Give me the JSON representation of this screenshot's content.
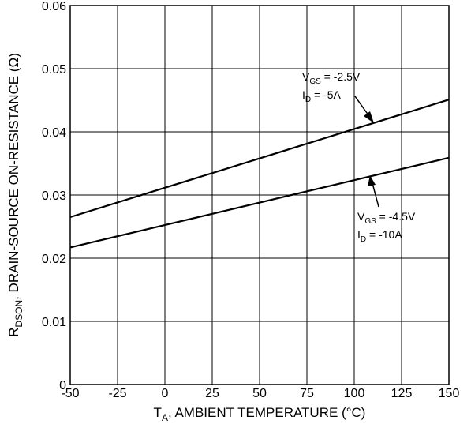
{
  "chart_data": {
    "type": "line",
    "x": [
      -50,
      150
    ],
    "series": [
      {
        "label_var": "GS",
        "label_prefix": "V",
        "label_value": " = -2.5V",
        "label2_var": "D",
        "label2_prefix": "I",
        "label2_value": " = -5A",
        "values": [
          0.0265,
          0.0451
        ]
      },
      {
        "label_var": "GS",
        "label_prefix": "V",
        "label_value": " = -4.5V",
        "label2_var": "D",
        "label2_prefix": "I",
        "label2_value": " = -10A",
        "values": [
          0.0217,
          0.0359
        ]
      }
    ],
    "xlim": [
      -50,
      150
    ],
    "ylim": [
      0,
      0.06
    ],
    "x_ticks": [
      "-50",
      "-25",
      "0",
      "25",
      "50",
      "75",
      "100",
      "125",
      "150"
    ],
    "y_ticks": [
      "0",
      "0.01",
      "0.02",
      "0.03",
      "0.04",
      "0.05",
      "0.06"
    ],
    "xlabel": {
      "prefix": "T",
      "sub": "A",
      "rest": ", AMBIENT TEMPERATURE (°C)"
    },
    "ylabel": {
      "prefix": "R",
      "sub": "DSON",
      "rest": ", DRAIN-SOURCE ON-RESISTANCE (Ω)"
    },
    "grid": true
  }
}
